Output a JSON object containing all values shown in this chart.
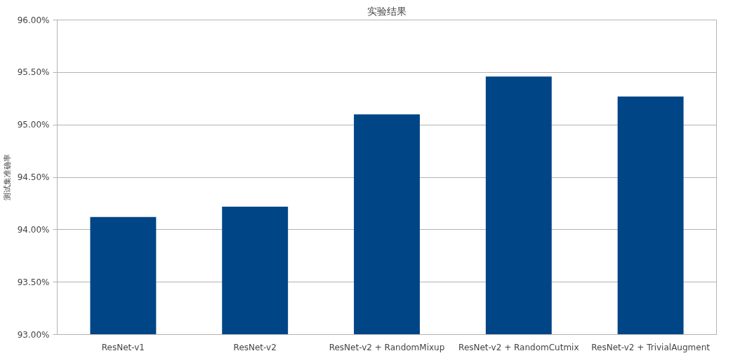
{
  "chart_data": {
    "type": "bar",
    "title": "实验结果",
    "ylabel": "测试集准确率",
    "categories": [
      "ResNet-v1",
      "ResNet-v2",
      "ResNet-v2 + RandomMixup",
      "ResNet-v2 + RandomCutmix",
      "ResNet-v2 + TrivialAugment"
    ],
    "values": [
      94.12,
      94.22,
      95.1,
      95.46,
      95.27
    ],
    "color": "#004586",
    "ylim": [
      93,
      96
    ],
    "yticks": [
      {
        "value": 93,
        "label": "93.00%"
      },
      {
        "value": 93.5,
        "label": "93.50%"
      },
      {
        "value": 94,
        "label": "94.00%"
      },
      {
        "value": 94.5,
        "label": "94.50%"
      },
      {
        "value": 95,
        "label": "95.00%"
      },
      {
        "value": 95.5,
        "label": "95.50%"
      },
      {
        "value": 96,
        "label": "96.00%"
      }
    ],
    "grid": "y"
  }
}
